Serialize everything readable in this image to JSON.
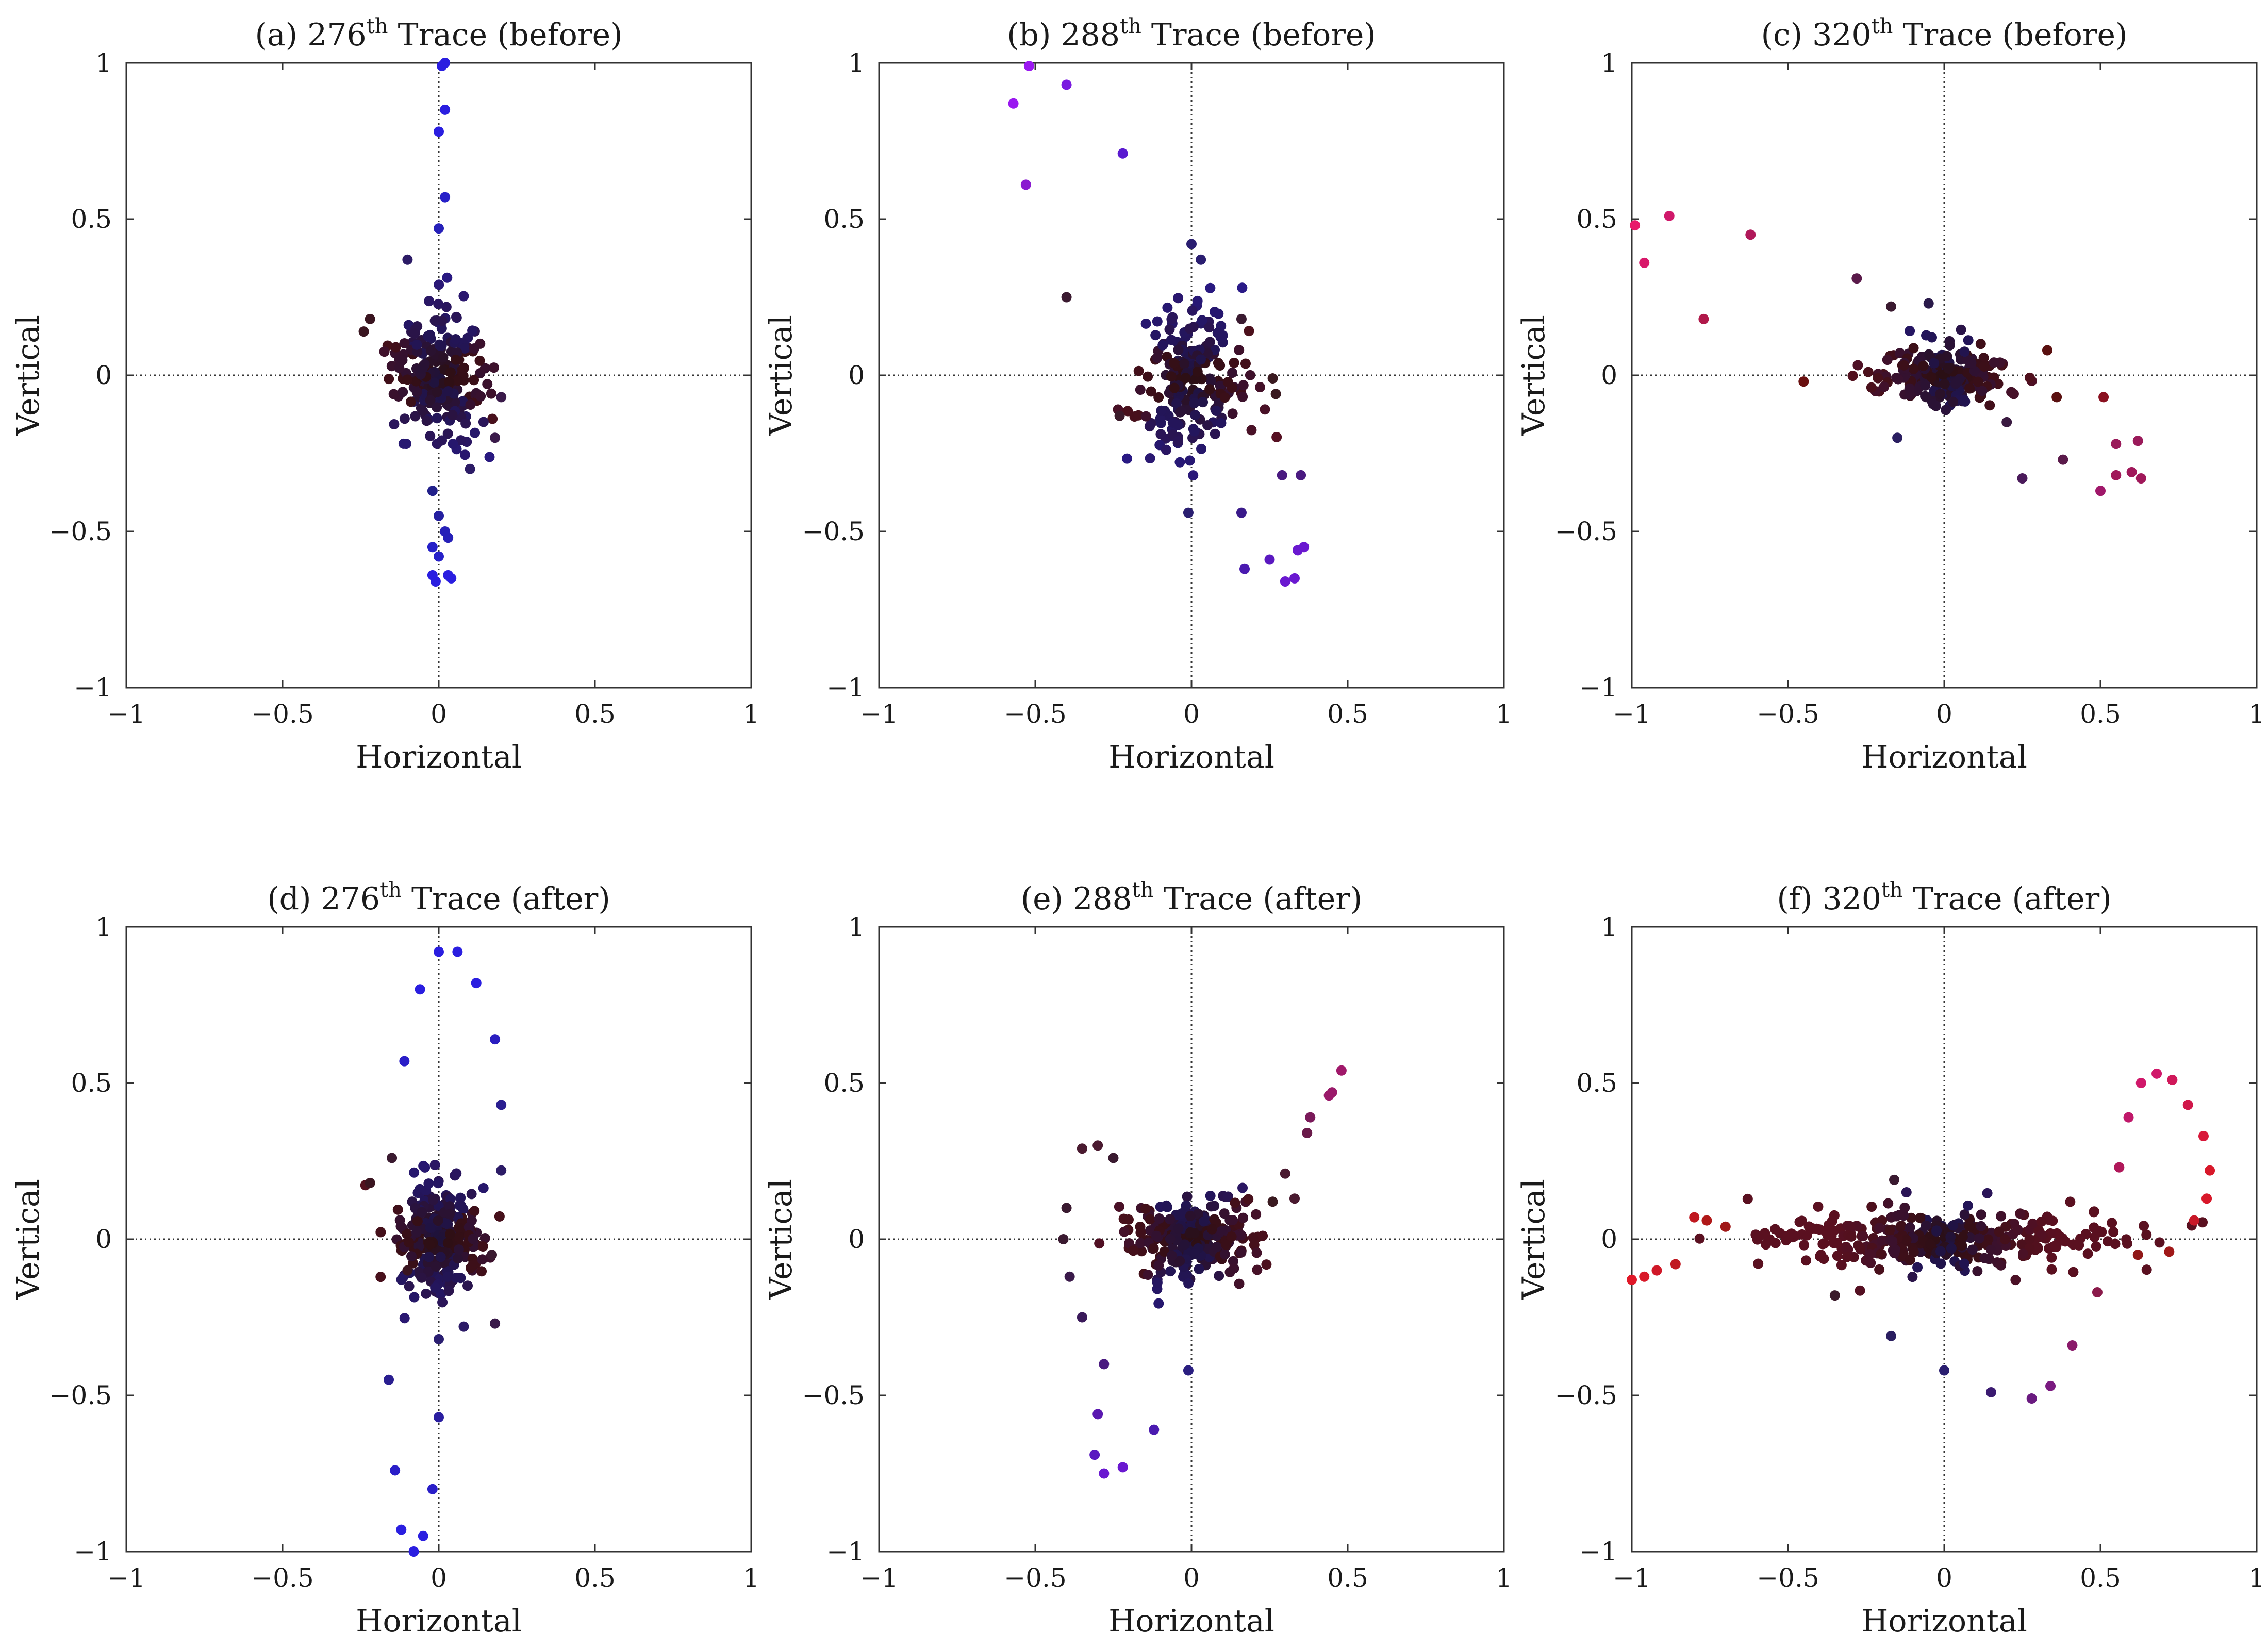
{
  "figure": {
    "tick_values": [
      -1,
      -0.5,
      0,
      0.5,
      1
    ],
    "tick_labels": [
      "−1",
      "−0.5",
      "0",
      "0.5",
      "1"
    ]
  },
  "chart_data": [
    {
      "id": "a",
      "type": "scatter",
      "title": {
        "prefix": "(a) 276",
        "sup": "th",
        "suffix": " Trace (before)"
      },
      "xlabel": "Horizontal",
      "ylabel": "Vertical",
      "xlim": [
        -1,
        1
      ],
      "ylim": [
        -1,
        1
      ],
      "grid": false,
      "reference_lines": "dotted at x=0 and y=0",
      "highlight_points": [
        {
          "x": 0.01,
          "y": 0.99,
          "c": "#2a1ee0"
        },
        {
          "x": 0.02,
          "y": 1.0,
          "c": "#2a1ee0"
        },
        {
          "x": 0.02,
          "y": 0.85,
          "c": "#2a1ee0"
        },
        {
          "x": 0.0,
          "y": 0.78,
          "c": "#2a1ee0"
        },
        {
          "x": 0.02,
          "y": 0.57,
          "c": "#2620c8"
        },
        {
          "x": 0.0,
          "y": 0.47,
          "c": "#2620b8"
        },
        {
          "x": -0.02,
          "y": -0.37,
          "c": "#22208a"
        },
        {
          "x": 0.0,
          "y": -0.45,
          "c": "#241fa0"
        },
        {
          "x": 0.02,
          "y": -0.5,
          "c": "#2620b8"
        },
        {
          "x": 0.03,
          "y": -0.52,
          "c": "#2620b8"
        },
        {
          "x": -0.02,
          "y": -0.55,
          "c": "#2620c8"
        },
        {
          "x": 0.0,
          "y": -0.58,
          "c": "#2620c8"
        },
        {
          "x": -0.02,
          "y": -0.64,
          "c": "#2a1ee0"
        },
        {
          "x": 0.03,
          "y": -0.64,
          "c": "#2a1ee0"
        },
        {
          "x": -0.01,
          "y": -0.66,
          "c": "#2a1ee0"
        },
        {
          "x": 0.04,
          "y": -0.65,
          "c": "#2a1ee0"
        },
        {
          "x": -0.1,
          "y": 0.37,
          "c": "#2c1b66"
        },
        {
          "x": -0.22,
          "y": 0.18,
          "c": "#3a1520"
        },
        {
          "x": -0.24,
          "y": 0.14,
          "c": "#3a1520"
        },
        {
          "x": 0.2,
          "y": -0.07,
          "c": "#3a1a4a"
        },
        {
          "x": 0.18,
          "y": -0.2,
          "c": "#3a1a4a"
        },
        {
          "x": 0.1,
          "y": -0.3,
          "c": "#2c1b66"
        }
      ],
      "cluster": {
        "cx": 0.0,
        "cy": 0.0,
        "sx": 0.07,
        "sy": 0.1,
        "n": 220,
        "seed": 11
      }
    },
    {
      "id": "b",
      "type": "scatter",
      "title": {
        "prefix": "(b) 288",
        "sup": "th",
        "suffix": " Trace (before)"
      },
      "xlabel": "Horizontal",
      "ylabel": "Vertical",
      "xlim": [
        -1,
        1
      ],
      "ylim": [
        -1,
        1
      ],
      "grid": false,
      "reference_lines": "dotted at x=0 and y=0",
      "highlight_points": [
        {
          "x": -0.52,
          "y": 0.99,
          "c": "#9a18f0"
        },
        {
          "x": -0.57,
          "y": 0.87,
          "c": "#9a18f0"
        },
        {
          "x": -0.4,
          "y": 0.93,
          "c": "#7a1ae0"
        },
        {
          "x": -0.53,
          "y": 0.61,
          "c": "#8a1ad0"
        },
        {
          "x": -0.22,
          "y": 0.71,
          "c": "#5a1ad0"
        },
        {
          "x": -0.4,
          "y": 0.25,
          "c": "#3a1a30"
        },
        {
          "x": -0.23,
          "y": -0.13,
          "c": "#3a1a2a"
        },
        {
          "x": 0.16,
          "y": -0.44,
          "c": "#3a1a8a"
        },
        {
          "x": 0.17,
          "y": -0.62,
          "c": "#4a1ab0"
        },
        {
          "x": 0.25,
          "y": -0.59,
          "c": "#5a18c0"
        },
        {
          "x": 0.3,
          "y": -0.66,
          "c": "#6a18d0"
        },
        {
          "x": 0.33,
          "y": -0.65,
          "c": "#6a18d0"
        },
        {
          "x": 0.34,
          "y": -0.56,
          "c": "#6a18d0"
        },
        {
          "x": 0.36,
          "y": -0.55,
          "c": "#6a18d0"
        },
        {
          "x": 0.29,
          "y": -0.32,
          "c": "#4a1a80"
        },
        {
          "x": 0.35,
          "y": -0.32,
          "c": "#4a1a80"
        },
        {
          "x": -0.01,
          "y": -0.44,
          "c": "#2a1e70"
        },
        {
          "x": 0.0,
          "y": 0.42,
          "c": "#2a1e70"
        },
        {
          "x": 0.03,
          "y": 0.37,
          "c": "#2a1e70"
        },
        {
          "x": 0.16,
          "y": 0.18,
          "c": "#3a1a30"
        },
        {
          "x": 0.26,
          "y": -0.01,
          "c": "#3a1a20"
        },
        {
          "x": 0.27,
          "y": -0.06,
          "c": "#3a1a20"
        }
      ],
      "cluster": {
        "cx": 0.0,
        "cy": -0.02,
        "sx": 0.08,
        "sy": 0.11,
        "n": 220,
        "seed": 23
      }
    },
    {
      "id": "c",
      "type": "scatter",
      "title": {
        "prefix": "(c) 320",
        "sup": "th",
        "suffix": " Trace (before)"
      },
      "xlabel": "Horizontal",
      "ylabel": "Vertical",
      "xlim": [
        -1,
        1
      ],
      "ylim": [
        -1,
        1
      ],
      "grid": false,
      "reference_lines": "dotted at x=0 and y=0",
      "highlight_points": [
        {
          "x": -0.99,
          "y": 0.48,
          "c": "#e8186a"
        },
        {
          "x": -0.96,
          "y": 0.36,
          "c": "#d8186a"
        },
        {
          "x": -0.88,
          "y": 0.51,
          "c": "#d0186a"
        },
        {
          "x": -0.77,
          "y": 0.18,
          "c": "#b0184a"
        },
        {
          "x": -0.62,
          "y": 0.45,
          "c": "#b0185a"
        },
        {
          "x": -0.45,
          "y": -0.02,
          "c": "#6a1010"
        },
        {
          "x": -0.28,
          "y": 0.31,
          "c": "#5a1a4a"
        },
        {
          "x": -0.05,
          "y": 0.23,
          "c": "#2a1a4a"
        },
        {
          "x": -0.17,
          "y": 0.22,
          "c": "#3a1a30"
        },
        {
          "x": 0.33,
          "y": 0.08,
          "c": "#5a1010"
        },
        {
          "x": 0.36,
          "y": -0.07,
          "c": "#5a1010"
        },
        {
          "x": 0.51,
          "y": -0.07,
          "c": "#8a1020"
        },
        {
          "x": 0.38,
          "y": -0.27,
          "c": "#5a1a4a"
        },
        {
          "x": 0.25,
          "y": -0.33,
          "c": "#4a1a5a"
        },
        {
          "x": 0.55,
          "y": -0.22,
          "c": "#9a1a5a"
        },
        {
          "x": 0.62,
          "y": -0.21,
          "c": "#9a1a5a"
        },
        {
          "x": 0.55,
          "y": -0.32,
          "c": "#a0185a"
        },
        {
          "x": 0.6,
          "y": -0.31,
          "c": "#a0185a"
        },
        {
          "x": 0.63,
          "y": -0.33,
          "c": "#a0185a"
        },
        {
          "x": 0.5,
          "y": -0.37,
          "c": "#a0186a"
        },
        {
          "x": -0.15,
          "y": -0.2,
          "c": "#2a1e60"
        },
        {
          "x": 0.2,
          "y": -0.15,
          "c": "#3a1a40"
        }
      ],
      "cluster": {
        "cx": 0.0,
        "cy": 0.0,
        "sx": 0.1,
        "sy": 0.05,
        "n": 220,
        "seed": 37
      }
    },
    {
      "id": "d",
      "type": "scatter",
      "title": {
        "prefix": "(d) 276",
        "sup": "th",
        "suffix": " Trace (after)"
      },
      "xlabel": "Horizontal",
      "ylabel": "Vertical",
      "xlim": [
        -1,
        1
      ],
      "ylim": [
        -1,
        1
      ],
      "grid": false,
      "reference_lines": "dotted at x=0 and y=0",
      "highlight_points": [
        {
          "x": 0.0,
          "y": 0.92,
          "c": "#2a1ee0"
        },
        {
          "x": 0.06,
          "y": 0.92,
          "c": "#2a1ee0"
        },
        {
          "x": -0.06,
          "y": 0.8,
          "c": "#2a1ee0"
        },
        {
          "x": 0.12,
          "y": 0.82,
          "c": "#2a1ee0"
        },
        {
          "x": -0.11,
          "y": 0.57,
          "c": "#2a1ec8"
        },
        {
          "x": 0.18,
          "y": 0.64,
          "c": "#2a1ec0"
        },
        {
          "x": 0.2,
          "y": 0.43,
          "c": "#2a1e90"
        },
        {
          "x": 0.2,
          "y": 0.22,
          "c": "#2c1b66"
        },
        {
          "x": -0.16,
          "y": -0.45,
          "c": "#2a1e90"
        },
        {
          "x": -0.14,
          "y": -0.74,
          "c": "#2a1ec8"
        },
        {
          "x": -0.12,
          "y": -0.93,
          "c": "#2a1ee0"
        },
        {
          "x": -0.08,
          "y": -1.0,
          "c": "#2a1ee0"
        },
        {
          "x": -0.05,
          "y": -0.95,
          "c": "#2a1ee0"
        },
        {
          "x": -0.02,
          "y": -0.8,
          "c": "#2a1ec8"
        },
        {
          "x": 0.0,
          "y": -0.57,
          "c": "#2a1ea0"
        },
        {
          "x": 0.0,
          "y": -0.32,
          "c": "#2a1e70"
        },
        {
          "x": -0.22,
          "y": 0.18,
          "c": "#3a1520"
        },
        {
          "x": -0.15,
          "y": 0.26,
          "c": "#3a1a30"
        },
        {
          "x": 0.18,
          "y": -0.27,
          "c": "#3a1a4a"
        },
        {
          "x": 0.08,
          "y": -0.28,
          "c": "#2c1b66"
        },
        {
          "x": -0.1,
          "y": -0.1,
          "c": "#3a1520"
        },
        {
          "x": 0.17,
          "y": -0.05,
          "c": "#3a1a30"
        }
      ],
      "cluster": {
        "cx": 0.0,
        "cy": 0.0,
        "sx": 0.07,
        "sy": 0.09,
        "n": 260,
        "seed": 41
      }
    },
    {
      "id": "e",
      "type": "scatter",
      "title": {
        "prefix": "(e) 288",
        "sup": "th",
        "suffix": " Trace (after)"
      },
      "xlabel": "Horizontal",
      "ylabel": "Vertical",
      "xlim": [
        -1,
        1
      ],
      "ylim": [
        -1,
        1
      ],
      "grid": false,
      "reference_lines": "dotted at x=0 and y=0",
      "highlight_points": [
        {
          "x": -0.35,
          "y": 0.29,
          "c": "#4a1a30"
        },
        {
          "x": -0.3,
          "y": 0.3,
          "c": "#4a1a30"
        },
        {
          "x": -0.25,
          "y": 0.26,
          "c": "#3a1a30"
        },
        {
          "x": -0.4,
          "y": 0.1,
          "c": "#3a1a30"
        },
        {
          "x": -0.41,
          "y": 0.0,
          "c": "#3a1a30"
        },
        {
          "x": -0.39,
          "y": -0.12,
          "c": "#3a1a4a"
        },
        {
          "x": -0.35,
          "y": -0.25,
          "c": "#3a1a5a"
        },
        {
          "x": -0.28,
          "y": -0.4,
          "c": "#4a1a80"
        },
        {
          "x": -0.3,
          "y": -0.56,
          "c": "#5a18b0"
        },
        {
          "x": -0.31,
          "y": -0.69,
          "c": "#5a18c0"
        },
        {
          "x": -0.28,
          "y": -0.75,
          "c": "#6a18d0"
        },
        {
          "x": -0.22,
          "y": -0.73,
          "c": "#6a18d0"
        },
        {
          "x": -0.12,
          "y": -0.61,
          "c": "#4a1ab0"
        },
        {
          "x": -0.01,
          "y": -0.42,
          "c": "#2a1e80"
        },
        {
          "x": 0.3,
          "y": 0.21,
          "c": "#4a1a30"
        },
        {
          "x": 0.33,
          "y": 0.13,
          "c": "#4a1a30"
        },
        {
          "x": 0.37,
          "y": 0.34,
          "c": "#6a1a4a"
        },
        {
          "x": 0.38,
          "y": 0.39,
          "c": "#7a1a5a"
        },
        {
          "x": 0.44,
          "y": 0.46,
          "c": "#9a1a6a"
        },
        {
          "x": 0.45,
          "y": 0.47,
          "c": "#9a1a6a"
        },
        {
          "x": 0.48,
          "y": 0.54,
          "c": "#a0186a"
        },
        {
          "x": 0.26,
          "y": 0.12,
          "c": "#3a1a20"
        }
      ],
      "cluster": {
        "cx": 0.0,
        "cy": 0.0,
        "sx": 0.1,
        "sy": 0.06,
        "n": 260,
        "seed": 53
      }
    },
    {
      "id": "f",
      "type": "scatter",
      "title": {
        "prefix": "(f) 320",
        "sup": "th",
        "suffix": " Trace (after)"
      },
      "xlabel": "Horizontal",
      "ylabel": "Vertical",
      "xlim": [
        -1,
        1
      ],
      "ylim": [
        -1,
        1
      ],
      "grid": false,
      "reference_lines": "dotted at x=0 and y=0",
      "highlight_points": [
        {
          "x": -1.0,
          "y": -0.13,
          "c": "#e01828"
        },
        {
          "x": -0.96,
          "y": -0.12,
          "c": "#d81828"
        },
        {
          "x": -0.92,
          "y": -0.1,
          "c": "#d01828"
        },
        {
          "x": -0.86,
          "y": -0.08,
          "c": "#c01820"
        },
        {
          "x": -0.8,
          "y": 0.07,
          "c": "#c01820"
        },
        {
          "x": -0.76,
          "y": 0.06,
          "c": "#b01818"
        },
        {
          "x": -0.7,
          "y": 0.04,
          "c": "#a01818"
        },
        {
          "x": -0.16,
          "y": 0.19,
          "c": "#3a1a30"
        },
        {
          "x": -0.17,
          "y": -0.31,
          "c": "#2a1e60"
        },
        {
          "x": -0.35,
          "y": -0.18,
          "c": "#3a1a2a"
        },
        {
          "x": 0.0,
          "y": -0.42,
          "c": "#2a1e70"
        },
        {
          "x": 0.15,
          "y": -0.49,
          "c": "#3a1a70"
        },
        {
          "x": 0.28,
          "y": -0.51,
          "c": "#6a1a80"
        },
        {
          "x": 0.34,
          "y": -0.47,
          "c": "#7a1a80"
        },
        {
          "x": 0.41,
          "y": -0.34,
          "c": "#8a1a6a"
        },
        {
          "x": 0.49,
          "y": -0.17,
          "c": "#8a1a4a"
        },
        {
          "x": 0.56,
          "y": 0.23,
          "c": "#b0185a"
        },
        {
          "x": 0.59,
          "y": 0.39,
          "c": "#c0186a"
        },
        {
          "x": 0.63,
          "y": 0.5,
          "c": "#d0186a"
        },
        {
          "x": 0.68,
          "y": 0.53,
          "c": "#d0186a"
        },
        {
          "x": 0.73,
          "y": 0.51,
          "c": "#d0185a"
        },
        {
          "x": 0.78,
          "y": 0.43,
          "c": "#d0184a"
        },
        {
          "x": 0.83,
          "y": 0.33,
          "c": "#d8183a"
        },
        {
          "x": 0.85,
          "y": 0.22,
          "c": "#d8182a"
        },
        {
          "x": 0.84,
          "y": 0.13,
          "c": "#d8182a"
        },
        {
          "x": 0.8,
          "y": 0.06,
          "c": "#c81828"
        },
        {
          "x": 0.72,
          "y": -0.04,
          "c": "#a01818"
        },
        {
          "x": 0.62,
          "y": -0.05,
          "c": "#901818"
        }
      ],
      "cluster": {
        "cx": 0.0,
        "cy": 0.0,
        "sx": 0.28,
        "sy": 0.045,
        "n": 330,
        "seed": 67
      }
    }
  ]
}
